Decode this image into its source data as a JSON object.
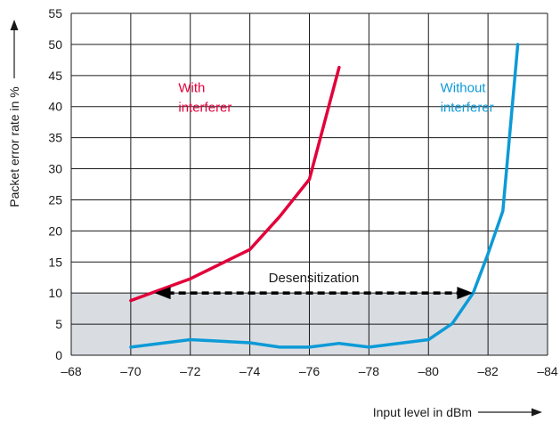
{
  "chart_data": {
    "type": "line",
    "title": "",
    "xlabel": "Input level in dBm",
    "ylabel": "Packet error rate in %",
    "xlim": [
      -68,
      -84
    ],
    "ylim": [
      0,
      55
    ],
    "x_ticks": [
      -68,
      -70,
      -72,
      -74,
      -76,
      -78,
      -80,
      -82,
      -84
    ],
    "x_tick_labels": [
      "–68",
      "–70",
      "–72",
      "–74",
      "–76",
      "–78",
      "–80",
      "–82",
      "–84"
    ],
    "y_ticks": [
      0,
      5,
      10,
      15,
      20,
      25,
      30,
      35,
      40,
      45,
      50,
      55
    ],
    "grid": true,
    "shaded_band": {
      "y_from": 0,
      "y_to": 10,
      "color": "#d9dde2"
    },
    "series": [
      {
        "name": "With interferer",
        "label_lines": [
          "With",
          "interferer"
        ],
        "color": "#e2003a",
        "points": [
          [
            -70,
            8.8
          ],
          [
            -72,
            12.3
          ],
          [
            -74,
            17
          ],
          [
            -75,
            22.3
          ],
          [
            -76,
            28.3
          ],
          [
            -77,
            46.3
          ]
        ]
      },
      {
        "name": "Without interferer",
        "label_lines": [
          "Without",
          "interferer"
        ],
        "color": "#0d9ad7",
        "points": [
          [
            -70,
            1.3
          ],
          [
            -72,
            2.5
          ],
          [
            -74,
            2.0
          ],
          [
            -75,
            1.3
          ],
          [
            -76,
            1.3
          ],
          [
            -77,
            1.9
          ],
          [
            -78,
            1.3
          ],
          [
            -80,
            2.5
          ],
          [
            -80.8,
            5.1
          ],
          [
            -81.5,
            10
          ],
          [
            -82,
            16.3
          ],
          [
            -82.5,
            23.2
          ],
          [
            -83,
            50
          ]
        ]
      }
    ],
    "annotation": {
      "text": "Desensitization",
      "from": [
        -70.8,
        10
      ],
      "to": [
        -81.5,
        10
      ]
    }
  }
}
